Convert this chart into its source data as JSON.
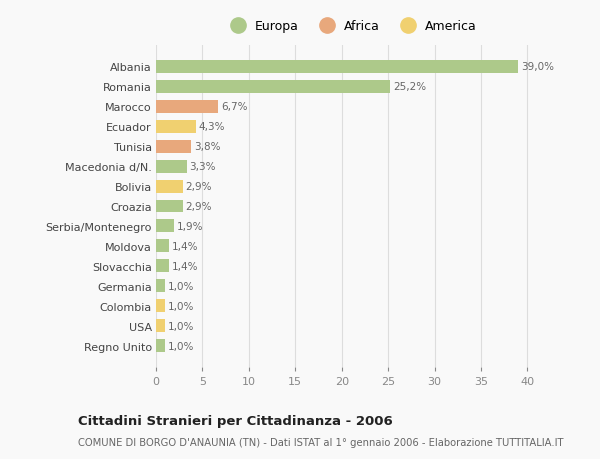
{
  "categories": [
    "Albania",
    "Romania",
    "Marocco",
    "Ecuador",
    "Tunisia",
    "Macedonia d/N.",
    "Bolivia",
    "Croazia",
    "Serbia/Montenegro",
    "Moldova",
    "Slovacchia",
    "Germania",
    "Colombia",
    "USA",
    "Regno Unito"
  ],
  "values": [
    39.0,
    25.2,
    6.7,
    4.3,
    3.8,
    3.3,
    2.9,
    2.9,
    1.9,
    1.4,
    1.4,
    1.0,
    1.0,
    1.0,
    1.0
  ],
  "labels": [
    "39,0%",
    "25,2%",
    "6,7%",
    "4,3%",
    "3,8%",
    "3,3%",
    "2,9%",
    "2,9%",
    "1,9%",
    "1,4%",
    "1,4%",
    "1,0%",
    "1,0%",
    "1,0%",
    "1,0%"
  ],
  "continents": [
    "Europa",
    "Europa",
    "Africa",
    "America",
    "Africa",
    "Europa",
    "America",
    "Europa",
    "Europa",
    "Europa",
    "Europa",
    "Europa",
    "America",
    "America",
    "Europa"
  ],
  "colors": {
    "Europa": "#adc98a",
    "Africa": "#e8a87c",
    "America": "#f0d070"
  },
  "xlim": [
    0,
    42
  ],
  "xticks": [
    0,
    5,
    10,
    15,
    20,
    25,
    30,
    35,
    40
  ],
  "title": "Cittadini Stranieri per Cittadinanza - 2006",
  "subtitle": "COMUNE DI BORGO D'ANAUNIA (TN) - Dati ISTAT al 1° gennaio 2006 - Elaborazione TUTTITALIA.IT",
  "background_color": "#f9f9f9",
  "grid_color": "#dddddd",
  "bar_label_color": "#666666",
  "ytick_color": "#444444",
  "xtick_color": "#888888"
}
